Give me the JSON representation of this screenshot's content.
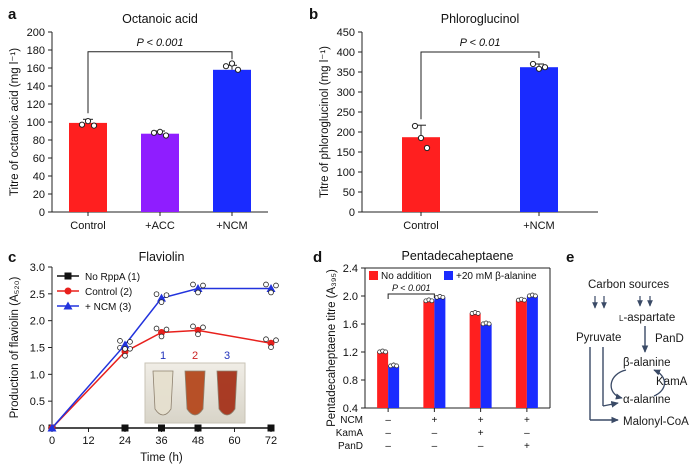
{
  "panels": {
    "a": "a",
    "b": "b",
    "c": "c",
    "d": "d",
    "e": "e"
  },
  "chart_data": [
    {
      "id": "a",
      "type": "bar",
      "title": "Octanoic acid",
      "ylabel": "Titre of octanoic acid (mg l⁻¹)",
      "ylim": [
        0,
        200
      ],
      "yticks": [
        0,
        20,
        40,
        60,
        80,
        100,
        120,
        140,
        160,
        180,
        200
      ],
      "categories": [
        "Control",
        "+ACC",
        "+NCM"
      ],
      "values": [
        99,
        87,
        158
      ],
      "errors": [
        4,
        3,
        5
      ],
      "colors": [
        "#ff1f1f",
        "#8f1dff",
        "#1a2bff"
      ],
      "points": [
        [
          97,
          101,
          96
        ],
        [
          88,
          89,
          85
        ],
        [
          162,
          165,
          158
        ]
      ],
      "significance": {
        "from": 0,
        "to": 2,
        "y": 178,
        "label": "P < 0.001"
      }
    },
    {
      "id": "b",
      "type": "bar",
      "title": "Phloroglucinol",
      "ylabel": "Titre of phloroglucinol (mg l⁻¹)",
      "ylim": [
        0,
        450
      ],
      "yticks": [
        0,
        50,
        100,
        150,
        200,
        250,
        300,
        350,
        400,
        450
      ],
      "categories": [
        "Control",
        "+NCM"
      ],
      "values": [
        187,
        362
      ],
      "errors": [
        30,
        8
      ],
      "colors": [
        "#ff1f1f",
        "#1a2bff"
      ],
      "points": [
        [
          215,
          185,
          160
        ],
        [
          370,
          358,
          362
        ]
      ],
      "significance": {
        "from": 0,
        "to": 1,
        "y": 400,
        "label": "P < 0.01"
      }
    },
    {
      "id": "c",
      "type": "line",
      "title": "Flaviolin",
      "ylabel": "Production of flaviolin (A₅₂₀)",
      "xlabel": "Time (h)",
      "xlim": [
        0,
        72
      ],
      "xticks": [
        0,
        12,
        24,
        36,
        48,
        60,
        72
      ],
      "ylim": [
        0,
        3.0
      ],
      "yticks": [
        "0",
        "0.5",
        "1.0",
        "1.5",
        "2.0",
        "2.5",
        "3.0"
      ],
      "x": [
        0,
        24,
        36,
        48,
        72
      ],
      "series": [
        {
          "name": "No RppA (1)",
          "values": [
            0,
            0,
            0,
            0,
            0
          ],
          "color": "#111111",
          "marker": "square"
        },
        {
          "name": "Control (2)",
          "values": [
            0,
            1.42,
            1.78,
            1.82,
            1.58
          ],
          "color": "#e8201c",
          "marker": "circle"
        },
        {
          "name": "+ NCM (3)",
          "values": [
            0,
            1.55,
            2.42,
            2.6,
            2.6
          ],
          "color": "#2233dd",
          "marker": "triangle"
        }
      ],
      "inset_labels": [
        {
          "text": "1",
          "color": "#2233bb"
        },
        {
          "text": "2",
          "color": "#cc2222"
        },
        {
          "text": "3",
          "color": "#2233bb"
        }
      ]
    },
    {
      "id": "d",
      "type": "bar",
      "title": "Pentadecaheptaene",
      "ylabel": "Pentadecaheptaene titre (A₃₉₅)",
      "ylim": [
        0.4,
        2.4
      ],
      "yticks": [
        "0.4",
        "0.8",
        "1.2",
        "1.6",
        "2.0",
        "2.4"
      ],
      "series": [
        {
          "name": "No addition",
          "values": [
            1.2,
            1.93,
            1.75,
            1.94
          ],
          "errors": [
            0.04,
            0.03,
            0.02,
            0.03
          ],
          "color": "#ff1f1f"
        },
        {
          "name": "+20 mM β-alanine",
          "values": [
            1.0,
            1.98,
            1.6,
            2.0
          ],
          "errors": [
            0.05,
            0.02,
            0.03,
            0.02
          ],
          "color": "#1a2bff"
        }
      ],
      "significance": {
        "label": "P < 0.001"
      },
      "conditions": [
        {
          "label": "NCM",
          "marks": [
            "–",
            "+",
            "+",
            "+"
          ]
        },
        {
          "label": "KamA",
          "marks": [
            "–",
            "–",
            "+",
            "–"
          ]
        },
        {
          "label": "PanD",
          "marks": [
            "–",
            "–",
            "–",
            "+"
          ]
        }
      ]
    }
  ],
  "pathway": {
    "carbon": "Carbon sources",
    "asp_small": "L",
    "asp_rest": "-aspartate",
    "pyruvate": "Pyruvate",
    "pand": "PanD",
    "beta": "β-alanine",
    "kama": "KamA",
    "alpha": "α-alanine",
    "malonyl": "Malonyl-CoA"
  }
}
